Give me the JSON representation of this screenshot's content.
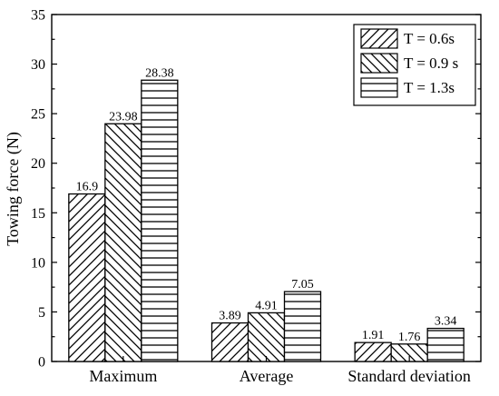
{
  "chart_data": {
    "type": "bar",
    "categories": [
      "Maximum",
      "Average",
      "Standard deviation"
    ],
    "series": [
      {
        "name": "T = 0.6s",
        "values": [
          16.9,
          3.89,
          1.91
        ],
        "pattern": "diagonal-up"
      },
      {
        "name": "T = 0.9 s",
        "values": [
          23.98,
          4.91,
          1.76
        ],
        "pattern": "diagonal-down"
      },
      {
        "name": "T = 1.3s",
        "values": [
          28.38,
          7.05,
          3.34
        ],
        "pattern": "horizontal"
      }
    ],
    "data_labels": [
      [
        "16.9",
        "3.89",
        "1.91"
      ],
      [
        "23.98",
        "4.91",
        "1.76"
      ],
      [
        "28.38",
        "7.05",
        "3.34"
      ]
    ],
    "title": "",
    "xlabel": "",
    "ylabel": "Towing force (N)",
    "ylim": [
      0,
      35
    ],
    "yticks": [
      0,
      5,
      10,
      15,
      20,
      25,
      30,
      35
    ],
    "ytick_labels": [
      "0",
      "5",
      "10",
      "15",
      "20",
      "25",
      "30",
      "35"
    ],
    "grid": false,
    "legend_position": "top-right",
    "colors": {
      "bar_fill": "#ffffff",
      "hatch": "#000000",
      "axis": "#000000"
    }
  }
}
